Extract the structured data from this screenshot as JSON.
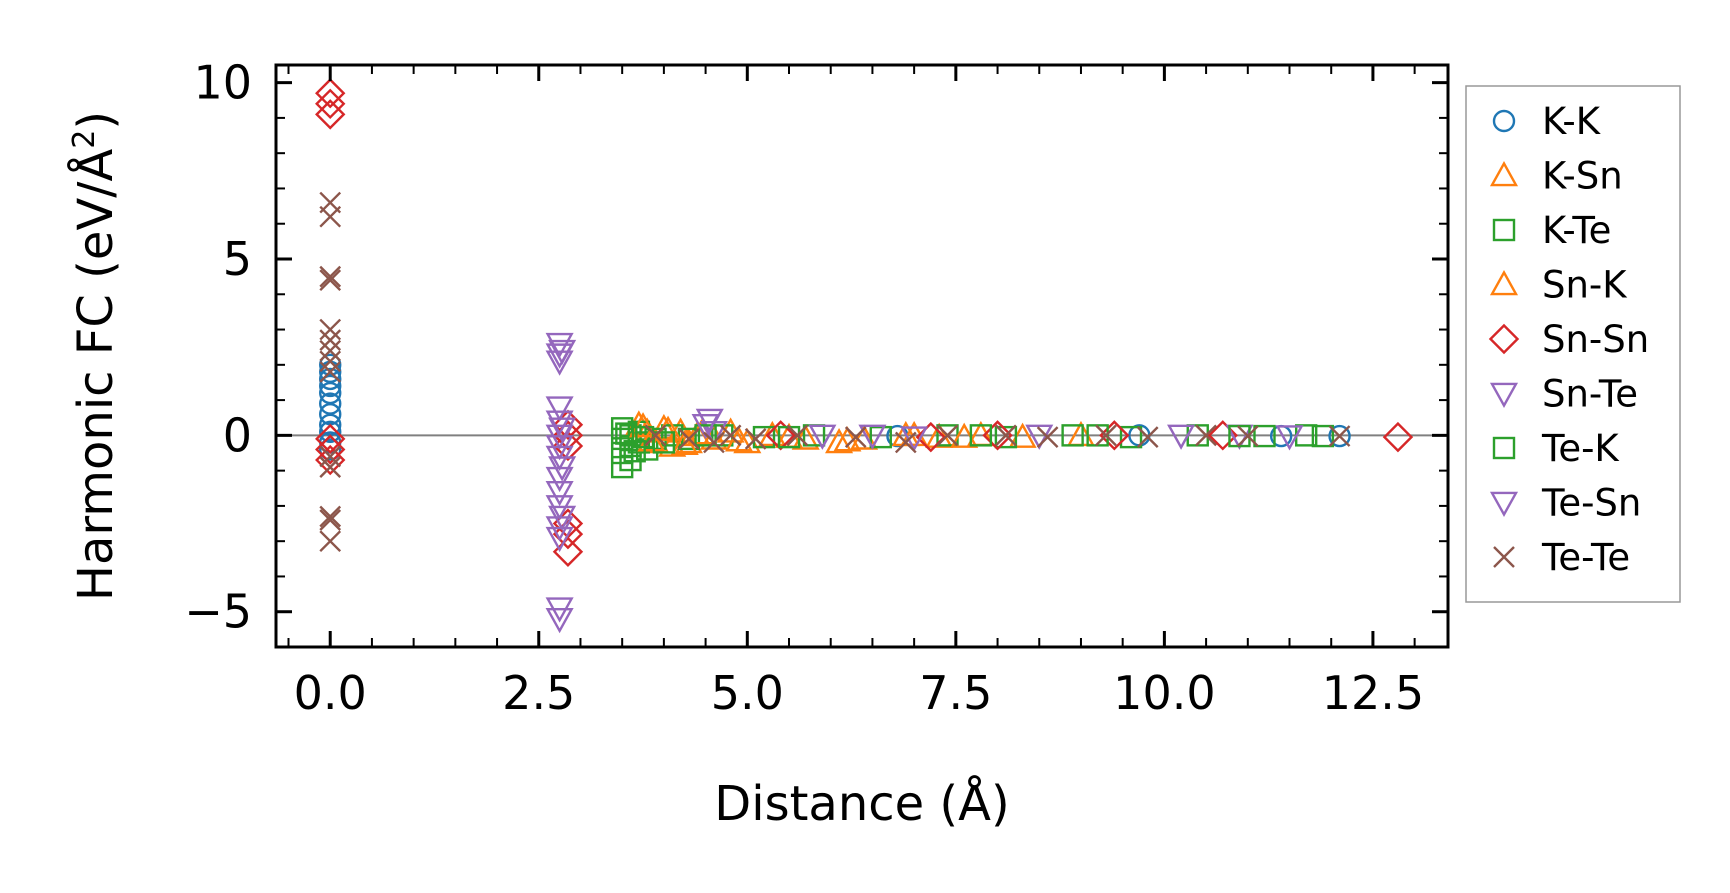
{
  "chart_data": {
    "type": "scatter",
    "title": "",
    "xlabel": "Distance (Å)",
    "ylabel_main": "Harmonic FC (eV/Å",
    "ylabel_sup": "2",
    "ylabel_close": ")",
    "xlim": [
      -0.65,
      13.4
    ],
    "ylim": [
      -6.0,
      10.5
    ],
    "xticks": [
      0.0,
      2.5,
      5.0,
      7.5,
      10.0,
      12.5
    ],
    "xtick_labels": [
      "0.0",
      "2.5",
      "5.0",
      "7.5",
      "10.0",
      "12.5"
    ],
    "yticks": [
      -5,
      0,
      5,
      10
    ],
    "ytick_labels": [
      "−5",
      "0",
      "5",
      "10"
    ],
    "zero_line": true,
    "legend_position": "outside-right",
    "series": [
      {
        "name": "K-K",
        "marker": "circle",
        "color": "#1f77b4",
        "points": [
          [
            0,
            2.0
          ],
          [
            0,
            1.6
          ],
          [
            0,
            1.2
          ],
          [
            0,
            0.9
          ],
          [
            0,
            0.6
          ],
          [
            0,
            0.3
          ],
          [
            0,
            0.1
          ],
          [
            0,
            -0.2
          ],
          [
            0,
            -0.4
          ],
          [
            0,
            1.8
          ],
          [
            0,
            1.4
          ],
          [
            6.8,
            -0.02
          ],
          [
            11.4,
            -0.02
          ],
          [
            12.1,
            -0.02
          ],
          [
            9.7,
            0.0
          ]
        ]
      },
      {
        "name": "K-Sn",
        "marker": "triangle-up",
        "color": "#ff7f0e",
        "points": [
          [
            3.7,
            0.3
          ],
          [
            3.8,
            0.1
          ],
          [
            3.9,
            -0.2
          ],
          [
            4.0,
            0.2
          ],
          [
            4.1,
            -0.3
          ],
          [
            4.2,
            0.1
          ],
          [
            4.3,
            -0.2
          ],
          [
            4.4,
            0.0
          ],
          [
            4.6,
            -0.1
          ],
          [
            4.8,
            0.1
          ],
          [
            5.0,
            -0.2
          ],
          [
            5.3,
            0.0
          ],
          [
            5.7,
            -0.1
          ],
          [
            6.1,
            -0.2
          ],
          [
            6.4,
            -0.1
          ],
          [
            6.9,
            0.0
          ],
          [
            7.3,
            -0.05
          ],
          [
            7.8,
            0.0
          ],
          [
            8.3,
            -0.05
          ],
          [
            9.0,
            0.0
          ]
        ]
      },
      {
        "name": "K-Te",
        "marker": "square",
        "color": "#2ca02c",
        "points": [
          [
            3.5,
            0.2
          ],
          [
            3.5,
            -0.1
          ],
          [
            3.5,
            -0.5
          ],
          [
            3.5,
            -0.9
          ],
          [
            3.6,
            0.0
          ],
          [
            3.6,
            -0.3
          ],
          [
            3.6,
            -0.7
          ],
          [
            3.7,
            0.1
          ],
          [
            3.7,
            -0.2
          ],
          [
            3.8,
            -0.4
          ],
          [
            3.9,
            -0.1
          ],
          [
            4.1,
            0.0
          ],
          [
            4.3,
            -0.1
          ],
          [
            4.7,
            0.0
          ],
          [
            5.2,
            -0.05
          ],
          [
            5.8,
            0.0
          ],
          [
            6.6,
            -0.05
          ],
          [
            7.4,
            0.0
          ],
          [
            8.1,
            -0.05
          ],
          [
            8.9,
            0.0
          ],
          [
            9.6,
            -0.05
          ],
          [
            10.4,
            0.0
          ],
          [
            11.2,
            -0.02
          ],
          [
            11.7,
            0.0
          ],
          [
            11.9,
            -0.02
          ]
        ]
      },
      {
        "name": "Sn-K",
        "marker": "triangle-up",
        "color": "#ff7f0e",
        "points": [
          [
            3.75,
            0.25
          ],
          [
            3.85,
            -0.15
          ],
          [
            4.05,
            0.15
          ],
          [
            4.25,
            -0.25
          ],
          [
            4.45,
            0.05
          ],
          [
            4.9,
            -0.15
          ],
          [
            5.5,
            -0.05
          ],
          [
            6.2,
            -0.15
          ],
          [
            7.0,
            0.0
          ],
          [
            7.6,
            -0.05
          ]
        ]
      },
      {
        "name": "Sn-Sn",
        "marker": "diamond",
        "color": "#d62728",
        "points": [
          [
            0,
            9.7
          ],
          [
            0,
            9.4
          ],
          [
            0,
            9.1
          ],
          [
            0,
            -0.1
          ],
          [
            0,
            -0.4
          ],
          [
            0,
            -0.7
          ],
          [
            2.85,
            0.3
          ],
          [
            2.85,
            0.0
          ],
          [
            2.85,
            -0.3
          ],
          [
            2.85,
            -2.5
          ],
          [
            2.85,
            -2.8
          ],
          [
            2.85,
            -3.3
          ],
          [
            5.4,
            0.0
          ],
          [
            7.2,
            -0.05
          ],
          [
            8.0,
            0.0
          ],
          [
            9.4,
            0.0
          ],
          [
            10.7,
            0.0
          ],
          [
            12.8,
            -0.05
          ]
        ]
      },
      {
        "name": "Sn-Te",
        "marker": "triangle-down",
        "color": "#9467bd",
        "points": [
          [
            2.75,
            2.6
          ],
          [
            2.75,
            2.3
          ],
          [
            2.75,
            2.1
          ],
          [
            2.75,
            0.8
          ],
          [
            2.75,
            0.4
          ],
          [
            2.75,
            0.0
          ],
          [
            2.75,
            -0.3
          ],
          [
            2.75,
            -0.6
          ],
          [
            2.75,
            -1.2
          ],
          [
            2.75,
            -1.6
          ],
          [
            2.75,
            -2.0
          ],
          [
            2.75,
            -2.6
          ],
          [
            2.75,
            -2.9
          ],
          [
            2.75,
            -4.9
          ],
          [
            2.75,
            -5.2
          ],
          [
            4.55,
            0.45
          ],
          [
            4.6,
            0.1
          ],
          [
            6.5,
            0.0
          ],
          [
            7.0,
            -0.05
          ],
          [
            10.9,
            0.0
          ],
          [
            11.5,
            -0.02
          ]
        ]
      },
      {
        "name": "Te-K",
        "marker": "square",
        "color": "#2ca02c",
        "points": [
          [
            3.55,
            0.05
          ],
          [
            3.65,
            -0.45
          ],
          [
            3.75,
            -0.05
          ],
          [
            4.0,
            -0.2
          ],
          [
            4.5,
            0.0
          ],
          [
            5.5,
            -0.05
          ],
          [
            7.8,
            0.0
          ],
          [
            9.2,
            0.0
          ],
          [
            10.9,
            -0.02
          ]
        ]
      },
      {
        "name": "Te-Sn",
        "marker": "triangle-down",
        "color": "#9467bd",
        "points": [
          [
            2.78,
            2.4
          ],
          [
            2.78,
            0.2
          ],
          [
            2.78,
            -0.9
          ],
          [
            2.78,
            -2.3
          ],
          [
            4.5,
            0.3
          ],
          [
            5.9,
            0.0
          ],
          [
            8.5,
            0.0
          ],
          [
            10.2,
            0.0
          ]
        ]
      },
      {
        "name": "Te-Te",
        "marker": "x",
        "color": "#8c564b",
        "points": [
          [
            0,
            6.6
          ],
          [
            0,
            6.2
          ],
          [
            0,
            4.5
          ],
          [
            0,
            4.4
          ],
          [
            0,
            3.0
          ],
          [
            0,
            2.7
          ],
          [
            0,
            2.4
          ],
          [
            0,
            2.1
          ],
          [
            0,
            1.8
          ],
          [
            0,
            -0.6
          ],
          [
            0,
            -0.9
          ],
          [
            0,
            -2.3
          ],
          [
            0,
            -2.4
          ],
          [
            0,
            -3.0
          ],
          [
            3.9,
            0.0
          ],
          [
            4.3,
            -0.1
          ],
          [
            4.6,
            -0.2
          ],
          [
            4.8,
            0.0
          ],
          [
            5.1,
            -0.1
          ],
          [
            5.6,
            0.0
          ],
          [
            6.3,
            -0.05
          ],
          [
            6.9,
            -0.2
          ],
          [
            7.4,
            0.0
          ],
          [
            8.1,
            0.0
          ],
          [
            8.6,
            -0.05
          ],
          [
            9.3,
            0.0
          ],
          [
            9.8,
            -0.05
          ],
          [
            10.5,
            0.0
          ],
          [
            11.0,
            -0.02
          ],
          [
            12.1,
            -0.02
          ]
        ]
      }
    ]
  }
}
